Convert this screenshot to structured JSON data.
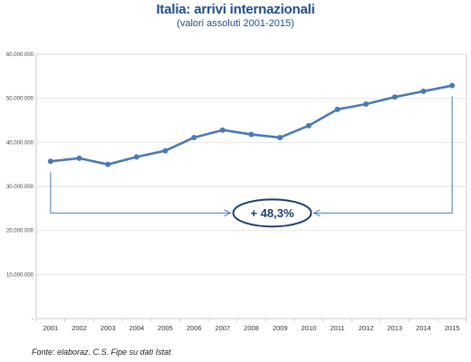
{
  "chart_data": {
    "type": "line",
    "title": "Italia: arrivi internazionali",
    "subtitle": "(valori assoluti 2001-2015)",
    "source": "Fonte:  elaboraz. C.S. Fipe su dati Istat",
    "categories": [
      "2001",
      "2002",
      "2003",
      "2004",
      "2005",
      "2006",
      "2007",
      "2008",
      "2009",
      "2010",
      "2011",
      "2012",
      "2013",
      "2014",
      "2015"
    ],
    "series": [
      {
        "values": [
          35700000,
          36400000,
          35000000,
          36700000,
          38100000,
          41100000,
          42800000,
          41800000,
          41100000,
          43800000,
          47500000,
          48700000,
          50300000,
          51600000,
          52900000
        ]
      }
    ],
    "ylim": [
      0,
      60000000
    ],
    "yticks": [
      0,
      10000000,
      20000000,
      30000000,
      40000000,
      50000000,
      60000000
    ],
    "ytick_labels": [
      "-",
      "10.000.000",
      "20.000.000",
      "30.000.000",
      "40.000.000",
      "50.000.000",
      "60.000.000"
    ],
    "grid": true,
    "annotation": {
      "text": "+ 48,3%",
      "value_y": 25000000
    },
    "colors": {
      "line": "#4a7ab5",
      "marker": "#4a7ab5",
      "annotation": "#1f3f70",
      "grid": "#d9d9d9"
    }
  }
}
